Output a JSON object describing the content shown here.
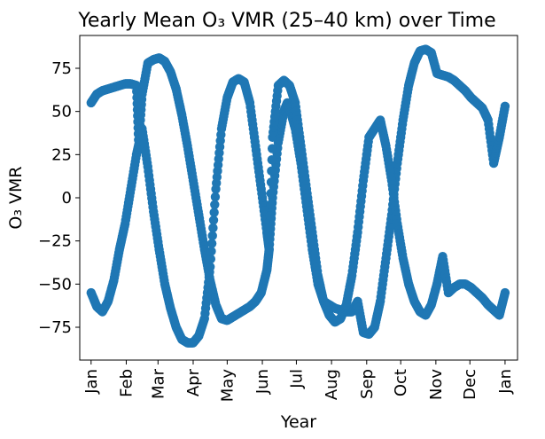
{
  "chart_data": {
    "type": "scatter",
    "title": "Yearly Mean O₃ VMR (25–40 km) over Time",
    "xlabel": "Year",
    "ylabel": "O₃ VMR",
    "xlim": [
      -10,
      376
    ],
    "ylim": [
      -94,
      94
    ],
    "y_ticks": [
      -75,
      -50,
      -25,
      0,
      25,
      50,
      75
    ],
    "x_ticks": [
      {
        "label": "Jan",
        "day": 0
      },
      {
        "label": "Feb",
        "day": 31
      },
      {
        "label": "Mar",
        "day": 59
      },
      {
        "label": "Apr",
        "day": 90
      },
      {
        "label": "May",
        "day": 120
      },
      {
        "label": "Jun",
        "day": 151
      },
      {
        "label": "Jul",
        "day": 181
      },
      {
        "label": "Aug",
        "day": 212
      },
      {
        "label": "Sep",
        "day": 243
      },
      {
        "label": "Oct",
        "day": 273
      },
      {
        "label": "Nov",
        "day": 304
      },
      {
        "label": "Dec",
        "day": 334
      },
      {
        "label": "Jan",
        "day": 365
      }
    ],
    "grid": false,
    "legend": "none",
    "marker_color": "#1f77b4",
    "series": [
      {
        "x": [
          0,
          5,
          10,
          15,
          20,
          25,
          30,
          35,
          40,
          42,
          45,
          50,
          55,
          60,
          65,
          70,
          75,
          80,
          85,
          90,
          95,
          100,
          105,
          110,
          115,
          120,
          125,
          130,
          135,
          140,
          145,
          150,
          155,
          157,
          160,
          165,
          170,
          173,
          175,
          180,
          185,
          190,
          195,
          200,
          205,
          210,
          215,
          220,
          225,
          230,
          235,
          240,
          245,
          250,
          255,
          260,
          265,
          270,
          275,
          280,
          285,
          290,
          295,
          300,
          305,
          310,
          315,
          320,
          325,
          330,
          335,
          340,
          345,
          350,
          355,
          360,
          365
        ],
        "y": [
          55,
          60,
          62,
          63,
          64,
          65,
          66,
          66,
          65,
          30,
          60,
          78,
          80,
          81,
          79,
          73,
          63,
          48,
          30,
          10,
          -10,
          -30,
          -48,
          -62,
          -70,
          -71,
          -69,
          -67,
          -65,
          -63,
          -60,
          -55,
          -42,
          -30,
          0,
          32,
          50,
          55,
          52,
          40,
          20,
          -5,
          -30,
          -50,
          -60,
          -62,
          -64,
          -65,
          -66,
          -66,
          -60,
          -78,
          -79,
          -75,
          -60,
          -35,
          -10,
          20,
          45,
          65,
          78,
          85,
          86,
          84,
          72,
          71,
          70,
          68,
          65,
          62,
          58,
          55,
          52,
          45,
          20,
          35,
          53
        ]
      },
      {
        "x": [
          0,
          5,
          10,
          15,
          20,
          25,
          30,
          35,
          40,
          45,
          50,
          55,
          60,
          65,
          70,
          75,
          80,
          85,
          90,
          95,
          100,
          105,
          110,
          115,
          120,
          125,
          130,
          135,
          140,
          145,
          150,
          155,
          157,
          160,
          165,
          170,
          175,
          180,
          185,
          190,
          195,
          200,
          205,
          210,
          215,
          220,
          225,
          230,
          235,
          240,
          245,
          250,
          255,
          260,
          265,
          270,
          275,
          280,
          285,
          290,
          295,
          300,
          305,
          310,
          315,
          320,
          325,
          330,
          335,
          340,
          345,
          350,
          355,
          360,
          365
        ],
        "y": [
          -55,
          -63,
          -66,
          -60,
          -48,
          -30,
          -15,
          5,
          25,
          40,
          18,
          -8,
          -30,
          -50,
          -64,
          -75,
          -82,
          -84,
          -84,
          -80,
          -70,
          -40,
          5,
          40,
          58,
          67,
          69,
          67,
          55,
          30,
          5,
          -20,
          -30,
          35,
          65,
          68,
          65,
          55,
          30,
          5,
          -20,
          -45,
          -60,
          -68,
          -72,
          -70,
          -62,
          -45,
          -20,
          10,
          35,
          40,
          45,
          30,
          10,
          -15,
          -35,
          -50,
          -60,
          -66,
          -68,
          -62,
          -50,
          -34,
          -55,
          -52,
          -50,
          -50,
          -52,
          -55,
          -58,
          -62,
          -65,
          -68,
          -55
        ]
      }
    ]
  }
}
